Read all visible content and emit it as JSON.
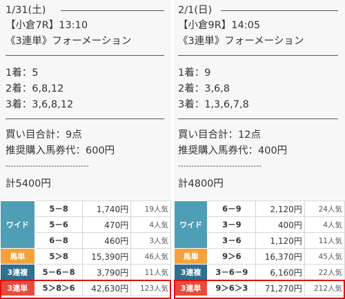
{
  "left": {
    "date": "1/31(土)",
    "race": "【小倉7R】13:10",
    "bet_type": "《3連単》フォーメーション",
    "first": "1着：5",
    "second": "2着：6,8,12",
    "third": "3着：3,6,8,12",
    "points": "買い目合計：9点",
    "unit": "推奨購入馬券代：600円",
    "dashes": "-------------------------------",
    "total": "計5400円",
    "results": {
      "wide_label": "ワイド",
      "wide": [
        {
          "combo": "5－8",
          "pay": "1,740円",
          "pop": "19人気"
        },
        {
          "combo": "5－6",
          "pay": "470円",
          "pop": "4人気"
        },
        {
          "combo": "6－8",
          "pay": "460円",
          "pop": "3人気"
        }
      ],
      "umatan": {
        "label": "馬単",
        "combo": "5＞8",
        "pay": "15,390円",
        "pop": "46人気"
      },
      "sanrenpuku": {
        "label": "3連複",
        "combo": "5－6－8",
        "pay": "3,790円",
        "pop": "11人気"
      },
      "sanrentan": {
        "label": "3連単",
        "combo": "5＞8＞6",
        "pay": "42,630円",
        "pop": "123人気"
      }
    }
  },
  "right": {
    "date": "2/1(日)",
    "race": "【小倉9R】14:05",
    "bet_type": "《3連単》フォーメーション",
    "first": "1着：9",
    "second": "2着：3,6,8",
    "third": "3着：1,3,6,7,8",
    "points": "買い目合計：12点",
    "unit": "推奨購入馬券代：400円",
    "dashes": "-------------------------------",
    "total": "計4800円",
    "results": {
      "wide_label": "ワイド",
      "wide": [
        {
          "combo": "6－9",
          "pay": "2,120円",
          "pop": "24人気"
        },
        {
          "combo": "3－9",
          "pay": "400円",
          "pop": "4人気"
        },
        {
          "combo": "3－6",
          "pay": "1,120円",
          "pop": "11人気"
        }
      ],
      "umatan": {
        "label": "馬単",
        "combo": "9＞6",
        "pay": "16,370円",
        "pop": "45人気"
      },
      "sanrenpuku": {
        "label": "3連複",
        "combo": "3－6－9",
        "pay": "6,160円",
        "pop": "22人気"
      },
      "sanrentan": {
        "label": "3連単",
        "combo": "9＞6＞3",
        "pay": "71,270円",
        "pop": "212人気"
      }
    }
  },
  "colors": {
    "wide": "#4e9eb5",
    "umatan": "#f5a23c",
    "sanrenpuku": "#2f6f8f",
    "sanrentan": "#e84b3c",
    "highlight": "#e01010"
  }
}
